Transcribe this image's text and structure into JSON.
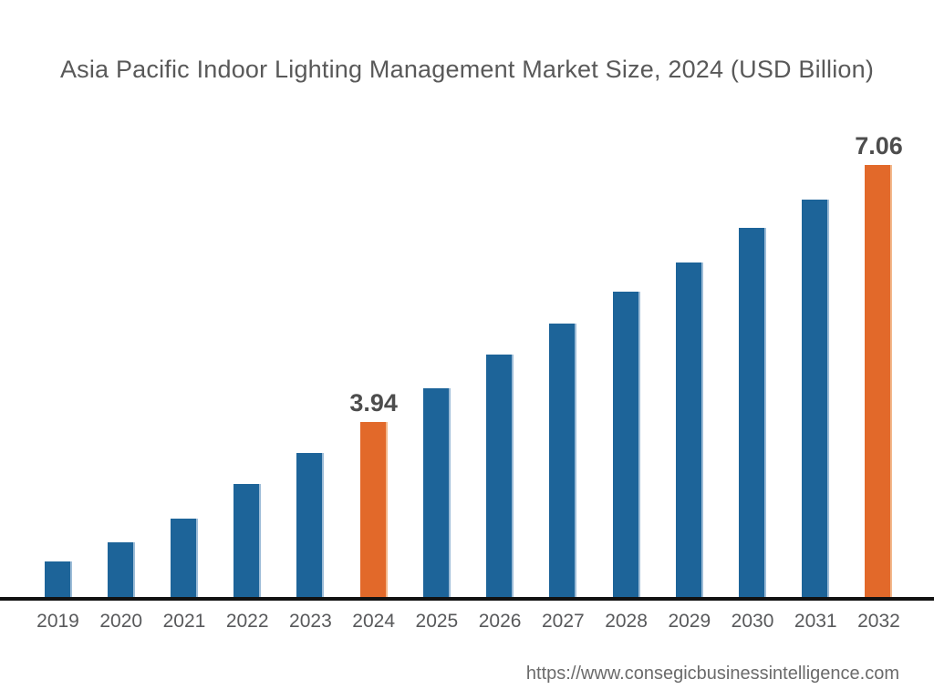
{
  "page": {
    "background": "#ffffff"
  },
  "chart_data": {
    "type": "bar",
    "title": "Asia Pacific Indoor Lighting Management Market Size, 2024 (USD Billion)",
    "unit": "USD Billion",
    "categories": [
      "2019",
      "2020",
      "2021",
      "2022",
      "2023",
      "2024",
      "2025",
      "2026",
      "2027",
      "2028",
      "2029",
      "2030",
      "2031",
      "2032"
    ],
    "values": [
      2.25,
      2.48,
      2.77,
      3.19,
      3.56,
      3.94,
      4.35,
      4.76,
      5.13,
      5.52,
      5.88,
      6.3,
      6.64,
      7.06
    ],
    "labeled_points": [
      {
        "category": "2024",
        "label": "3.94"
      },
      {
        "category": "2032",
        "label": "7.06"
      }
    ],
    "highlighted_categories": [
      "2024",
      "2032"
    ],
    "baseline_value": 1.816,
    "layout_hints": {
      "y_axis_visible": false,
      "gridlines": false,
      "legend": "none",
      "data_labels_position": "above-bar"
    },
    "colors": {
      "bar": "#1d6499",
      "bar_edge": "#9dbcd7",
      "highlight": "#e2692a",
      "highlight_edge": "#f2b88c",
      "axis_line": "#121212",
      "value_label_text": "#4d4d4d",
      "tick_text": "#58595b",
      "title_text": "#595959",
      "url_text": "#6b6b6b"
    }
  },
  "footer": {
    "source_url": "https://www.consegicbusinessintelligence.com"
  }
}
